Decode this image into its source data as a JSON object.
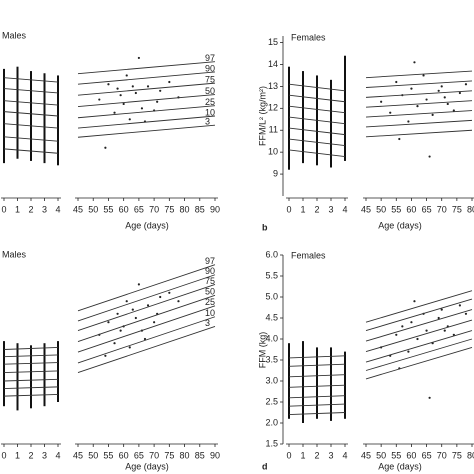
{
  "chart_data": [
    {
      "type": "line",
      "title": "Males",
      "xlabel": "Age (days)",
      "ylim": [
        8,
        15.3
      ],
      "early": {
        "xlim": [
          0,
          4
        ],
        "xticks": [
          0,
          1,
          2,
          3,
          4
        ],
        "x": [
          0,
          4
        ],
        "series": [
          {
            "values": [
              13.4,
              13.2
            ]
          },
          {
            "values": [
              12.9,
              12.7
            ]
          },
          {
            "values": [
              12.35,
              12.15
            ]
          },
          {
            "values": [
              11.85,
              11.65
            ]
          },
          {
            "values": [
              11.3,
              11.1
            ]
          },
          {
            "values": [
              10.7,
              10.5
            ]
          },
          {
            "values": [
              10.15,
              9.95
            ]
          }
        ],
        "ranges": [
          [
            9.5,
            13.8
          ],
          [
            9.7,
            13.9
          ],
          [
            9.6,
            13.7
          ],
          [
            9.5,
            13.6
          ],
          [
            9.4,
            13.5
          ]
        ]
      },
      "late": {
        "xlim": [
          45,
          90
        ],
        "xticks": [
          45,
          50,
          55,
          60,
          65,
          70,
          75,
          80,
          85,
          90
        ],
        "x": [
          45,
          90
        ],
        "series": [
          {
            "name": "97",
            "values": [
              13.58,
              14.13
            ]
          },
          {
            "name": "90",
            "values": [
              13.1,
              13.66
            ]
          },
          {
            "name": "75",
            "values": [
              12.6,
              13.15
            ]
          },
          {
            "name": "50",
            "values": [
              12.08,
              12.63
            ]
          },
          {
            "name": "25",
            "values": [
              11.57,
              12.12
            ]
          },
          {
            "name": "10",
            "values": [
              11.1,
              11.65
            ]
          },
          {
            "name": "3",
            "values": [
              10.68,
              11.23
            ]
          }
        ],
        "points": {
          "x": [
            52,
            55,
            57,
            58,
            60,
            61,
            62,
            64,
            65,
            66,
            68,
            70,
            72,
            75,
            78,
            54,
            59,
            63,
            67,
            71
          ],
          "y": [
            12.4,
            13.1,
            11.8,
            12.9,
            12.2,
            13.5,
            11.5,
            12.7,
            14.3,
            12.0,
            13.0,
            11.9,
            12.8,
            13.2,
            12.5,
            10.2,
            12.6,
            13.0,
            11.4,
            12.3
          ]
        }
      }
    },
    {
      "type": "line",
      "title": "Females",
      "panel_label": "b",
      "xlabel": "Age (days)",
      "ylabel": "FFM/L² (kg/m²)",
      "ylim": [
        8,
        15.3
      ],
      "yticks": [
        9,
        10,
        11,
        12,
        13,
        14,
        15
      ],
      "early": {
        "xlim": [
          0,
          4
        ],
        "xticks": [
          0,
          1,
          2,
          3,
          4
        ],
        "x": [
          0,
          4
        ],
        "series": [
          {
            "values": [
              13.1,
              12.8
            ]
          },
          {
            "values": [
              12.6,
              12.3
            ]
          },
          {
            "values": [
              12.1,
              11.8
            ]
          },
          {
            "values": [
              11.6,
              11.3
            ]
          },
          {
            "values": [
              11.1,
              10.8
            ]
          },
          {
            "values": [
              10.6,
              10.3
            ]
          },
          {
            "values": [
              10.1,
              9.8
            ]
          }
        ],
        "ranges": [
          [
            9.2,
            13.9
          ],
          [
            9.5,
            13.7
          ],
          [
            9.4,
            13.5
          ],
          [
            9.3,
            13.3
          ],
          [
            9.6,
            14.4
          ]
        ]
      },
      "late": {
        "xlim": [
          45,
          80
        ],
        "xticks": [
          45,
          50,
          55,
          60,
          65,
          70,
          75,
          80
        ],
        "x": [
          45,
          80
        ],
        "series": [
          {
            "values": [
              13.4,
              13.7
            ]
          },
          {
            "values": [
              12.95,
              13.25
            ]
          },
          {
            "values": [
              12.5,
              12.8
            ]
          },
          {
            "values": [
              12.05,
              12.35
            ]
          },
          {
            "values": [
              11.6,
              11.9
            ]
          },
          {
            "values": [
              11.15,
              11.45
            ]
          },
          {
            "values": [
              10.7,
              11.0
            ]
          }
        ],
        "points": {
          "x": [
            50,
            53,
            55,
            57,
            59,
            60,
            62,
            64,
            65,
            67,
            69,
            70,
            72,
            74,
            76,
            78,
            56,
            61,
            66,
            71
          ],
          "y": [
            12.3,
            11.8,
            13.2,
            12.6,
            11.4,
            12.9,
            12.1,
            13.5,
            12.4,
            11.7,
            12.8,
            13.0,
            12.2,
            11.9,
            12.7,
            13.1,
            10.6,
            14.1,
            9.8,
            12.5
          ]
        }
      }
    },
    {
      "type": "line",
      "title": "Males",
      "xlabel": "Age (days)",
      "ylim": [
        1.5,
        6
      ],
      "early": {
        "xlim": [
          0,
          4
        ],
        "xticks": [
          0,
          1,
          2,
          3,
          4
        ],
        "x": [
          0,
          4
        ],
        "series": [
          {
            "values": [
              3.75,
              3.8
            ]
          },
          {
            "values": [
              3.58,
              3.62
            ]
          },
          {
            "values": [
              3.4,
              3.44
            ]
          },
          {
            "values": [
              3.2,
              3.24
            ]
          },
          {
            "values": [
              3.0,
              3.04
            ]
          },
          {
            "values": [
              2.82,
              2.86
            ]
          },
          {
            "values": [
              2.64,
              2.68
            ]
          }
        ],
        "ranges": [
          [
            2.4,
            3.95
          ],
          [
            2.3,
            3.9
          ],
          [
            2.35,
            3.85
          ],
          [
            2.4,
            3.9
          ],
          [
            2.5,
            3.95
          ]
        ]
      },
      "late": {
        "xlim": [
          45,
          90
        ],
        "xticks": [
          45,
          50,
          55,
          60,
          65,
          70,
          75,
          80,
          85,
          90
        ],
        "x": [
          45,
          90
        ],
        "series": [
          {
            "name": "97",
            "values": [
              4.67,
              5.77
            ]
          },
          {
            "name": "90",
            "values": [
              4.43,
              5.53
            ]
          },
          {
            "name": "75",
            "values": [
              4.2,
              5.3
            ]
          },
          {
            "name": "50",
            "values": [
              3.94,
              5.04
            ]
          },
          {
            "name": "25",
            "values": [
              3.69,
              4.79
            ]
          },
          {
            "name": "10",
            "values": [
              3.43,
              4.53
            ]
          },
          {
            "name": "3",
            "values": [
              3.2,
              4.3
            ]
          }
        ],
        "points": {
          "x": [
            52,
            55,
            57,
            58,
            60,
            61,
            62,
            64,
            65,
            66,
            68,
            70,
            72,
            75,
            78,
            54,
            59,
            63,
            67,
            71
          ],
          "y": [
            4.1,
            4.4,
            3.9,
            4.6,
            4.3,
            4.9,
            3.8,
            4.5,
            5.3,
            4.2,
            4.8,
            4.4,
            5.0,
            5.1,
            4.9,
            3.6,
            4.2,
            4.7,
            4.0,
            4.6
          ]
        }
      }
    },
    {
      "type": "line",
      "title": "Females",
      "panel_label": "d",
      "xlabel": "Age (days)",
      "ylabel": "FFM (kg)",
      "ylim": [
        1.5,
        6
      ],
      "yticks": [
        1.5,
        {
          "value": 2,
          "label": "2.0"
        },
        2.5,
        {
          "value": 3,
          "label": "3.0"
        },
        3.5,
        {
          "value": 4,
          "label": "4.0"
        },
        4.5,
        {
          "value": 5,
          "label": "5.0"
        },
        5.5,
        {
          "value": 6,
          "label": "6.0"
        }
      ],
      "early": {
        "xlim": [
          0,
          4
        ],
        "xticks": [
          0,
          1,
          2,
          3,
          4
        ],
        "x": [
          0,
          4
        ],
        "series": [
          {
            "values": [
              3.55,
              3.6
            ]
          },
          {
            "values": [
              3.35,
              3.4
            ]
          },
          {
            "values": [
              3.1,
              3.15
            ]
          },
          {
            "values": [
              2.85,
              2.9
            ]
          },
          {
            "values": [
              2.6,
              2.65
            ]
          },
          {
            "values": [
              2.4,
              2.45
            ]
          },
          {
            "values": [
              2.2,
              2.25
            ]
          }
        ],
        "ranges": [
          [
            2.1,
            3.9
          ],
          [
            2.0,
            3.95
          ],
          [
            2.1,
            3.8
          ],
          [
            2.05,
            3.8
          ],
          [
            2.1,
            3.7
          ]
        ]
      },
      "late": {
        "xlim": [
          45,
          80
        ],
        "xticks": [
          45,
          50,
          55,
          60,
          65,
          70,
          75,
          80
        ],
        "x": [
          45,
          80
        ],
        "series": [
          {
            "values": [
              4.4,
              5.15
            ]
          },
          {
            "values": [
              4.2,
              4.95
            ]
          },
          {
            "values": [
              3.95,
              4.7
            ]
          },
          {
            "values": [
              3.7,
              4.45
            ]
          },
          {
            "values": [
              3.45,
              4.2
            ]
          },
          {
            "values": [
              3.25,
              4.0
            ]
          },
          {
            "values": [
              3.05,
              3.8
            ]
          }
        ],
        "points": {
          "x": [
            50,
            53,
            55,
            57,
            59,
            60,
            62,
            64,
            65,
            67,
            69,
            70,
            72,
            74,
            76,
            78,
            56,
            61,
            66,
            71
          ],
          "y": [
            3.8,
            3.6,
            4.1,
            4.3,
            3.7,
            4.4,
            4.0,
            4.6,
            4.2,
            3.9,
            4.5,
            4.7,
            4.3,
            4.1,
            4.8,
            4.6,
            3.3,
            4.9,
            2.6,
            4.2
          ]
        }
      }
    }
  ]
}
